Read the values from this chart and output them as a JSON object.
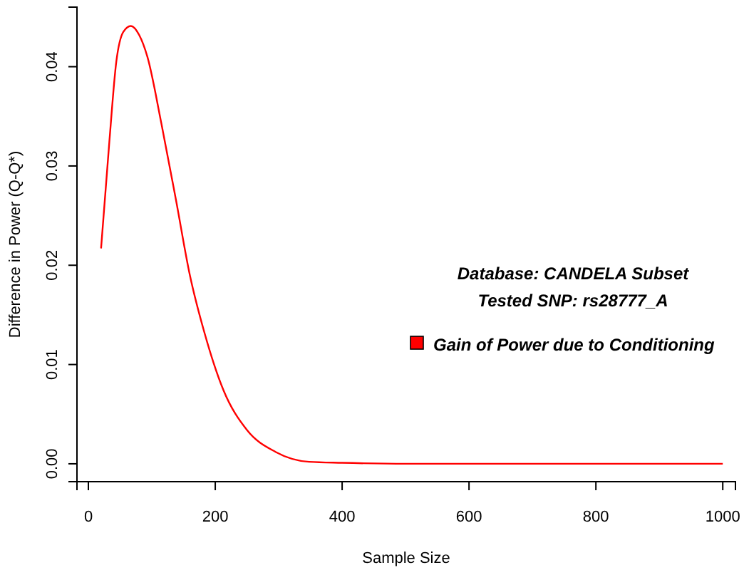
{
  "chart_data": {
    "type": "line",
    "xlabel": "Sample Size",
    "ylabel": "Difference in Power (Q-Q*)",
    "xlim": [
      -18,
      1020
    ],
    "ylim": [
      -0.0018,
      0.046
    ],
    "xticks": [
      0,
      200,
      400,
      600,
      800,
      1000
    ],
    "yticks": [
      {
        "value": 0,
        "label": "0.00"
      },
      {
        "value": 0.01,
        "label": "0.01"
      },
      {
        "value": 0.02,
        "label": "0.02"
      },
      {
        "value": 0.03,
        "label": "0.03"
      },
      {
        "value": 0.04,
        "label": "0.04"
      }
    ],
    "annotations": [
      "Database: CANDELA Subset",
      "Tested SNP: rs28777_A"
    ],
    "legend": "right",
    "grid": false,
    "series": [
      {
        "name": "Gain of Power due to Conditioning",
        "color": "#ff0000",
        "x": [
          20,
          33,
          44,
          55,
          67,
          80,
          93,
          115,
          138,
          160,
          183,
          213,
          250,
          295,
          348,
          400,
          500,
          600,
          800,
          1000
        ],
        "values": [
          0.0217,
          0.0324,
          0.0405,
          0.0435,
          0.0441,
          0.0432,
          0.041,
          0.0343,
          0.0266,
          0.019,
          0.0132,
          0.0074,
          0.0034,
          0.0012,
          0.0002,
          0.0001,
          0,
          0,
          0,
          0
        ]
      }
    ]
  }
}
